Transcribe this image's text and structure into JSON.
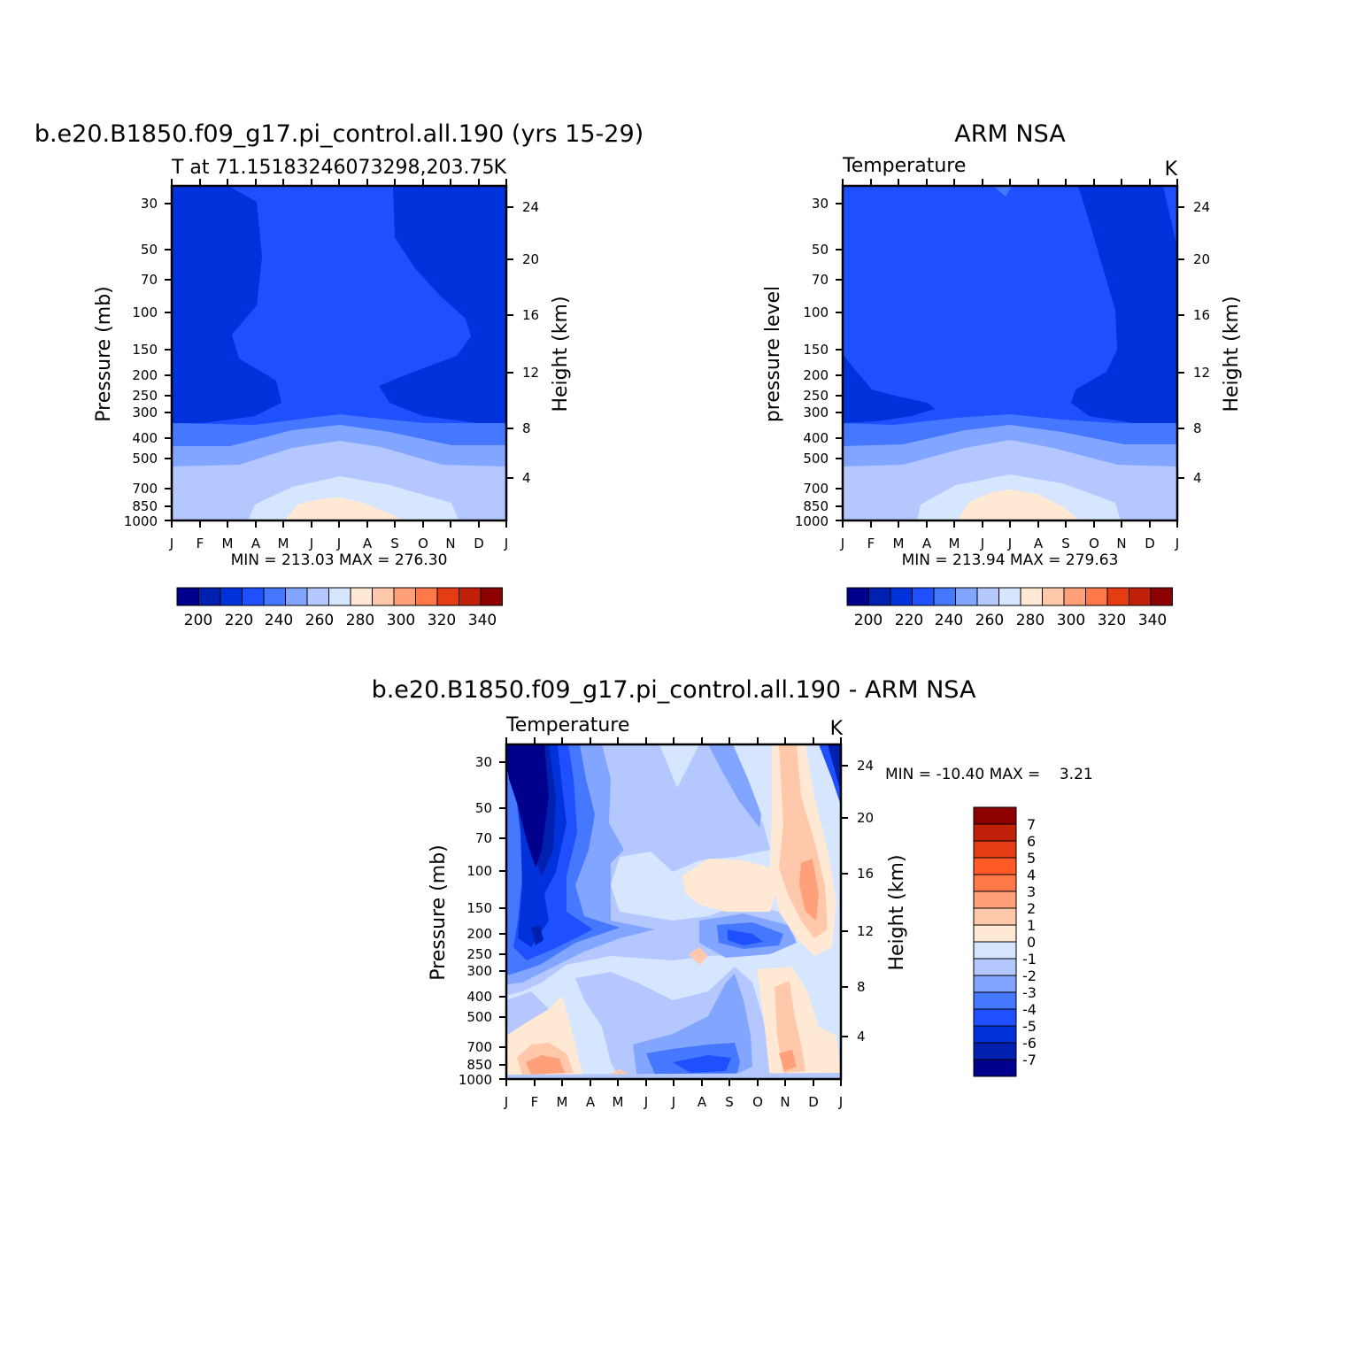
{
  "chart_data": [
    {
      "type": "heatmap",
      "title": "b.e20.B1850.f09_g17.pi_control.all.190 (yrs 15-29)",
      "subtitle_left": "T at 71.15183246073298,203.75",
      "subtitle_right": "K",
      "ylabel": "Pressure (mb)",
      "ylabel_right": "Height (km)",
      "x_ticks": [
        "J",
        "F",
        "M",
        "A",
        "M",
        "J",
        "J",
        "A",
        "S",
        "O",
        "N",
        "D",
        "J"
      ],
      "y_ticks": [
        "30",
        "50",
        "70",
        "100",
        "150",
        "200",
        "250",
        "300",
        "400",
        "500",
        "700",
        "850",
        "1000"
      ],
      "y_ticks_right": [
        "24",
        "20",
        "16",
        "12",
        "8",
        "4"
      ],
      "stats": "MIN = 213.03 MAX = 276.30",
      "colorbar_labels": [
        "200",
        "220",
        "240",
        "260",
        "280",
        "300",
        "320",
        "340"
      ]
    },
    {
      "type": "heatmap",
      "title": "ARM NSA",
      "subtitle_left": "Temperature",
      "subtitle_right": "K",
      "ylabel": "pressure level",
      "ylabel_right": "Height (km)",
      "x_ticks": [
        "J",
        "F",
        "M",
        "A",
        "M",
        "J",
        "J",
        "A",
        "S",
        "O",
        "N",
        "D",
        "J"
      ],
      "y_ticks": [
        "30",
        "50",
        "70",
        "100",
        "150",
        "200",
        "250",
        "300",
        "400",
        "500",
        "700",
        "850",
        "1000"
      ],
      "y_ticks_right": [
        "24",
        "20",
        "16",
        "12",
        "8",
        "4"
      ],
      "stats": "MIN = 213.94 MAX = 279.63",
      "colorbar_labels": [
        "200",
        "220",
        "240",
        "260",
        "280",
        "300",
        "320",
        "340"
      ]
    },
    {
      "type": "heatmap",
      "title": "b.e20.B1850.f09_g17.pi_control.all.190 - ARM NSA",
      "subtitle_left": "Temperature",
      "subtitle_right": "K",
      "ylabel": "Pressure (mb)",
      "ylabel_right": "Height (km)",
      "x_ticks": [
        "J",
        "F",
        "M",
        "A",
        "M",
        "J",
        "J",
        "A",
        "S",
        "O",
        "N",
        "D",
        "J"
      ],
      "y_ticks": [
        "30",
        "50",
        "70",
        "100",
        "150",
        "200",
        "250",
        "300",
        "400",
        "500",
        "700",
        "850",
        "1000"
      ],
      "y_ticks_right": [
        "24",
        "20",
        "16",
        "12",
        "8",
        "4"
      ],
      "stats": "MIN = -10.40 MAX =    3.21",
      "colorbar_labels": [
        "7",
        "6",
        "5",
        "4",
        "3",
        "2",
        "1",
        "0",
        "-1",
        "-2",
        "-3",
        "-4",
        "-5",
        "-6",
        "-7"
      ]
    }
  ],
  "colors": {
    "levels": [
      "#00008c",
      "#0020b0",
      "#0032dc",
      "#1e50ff",
      "#4678ff",
      "#82a5ff",
      "#b4c8ff",
      "#d6e6ff",
      "#ffe8d4",
      "#ffc8aa",
      "#ffa07a",
      "#ff7848",
      "#e63c14",
      "#c02008",
      "#8c0000"
    ]
  }
}
